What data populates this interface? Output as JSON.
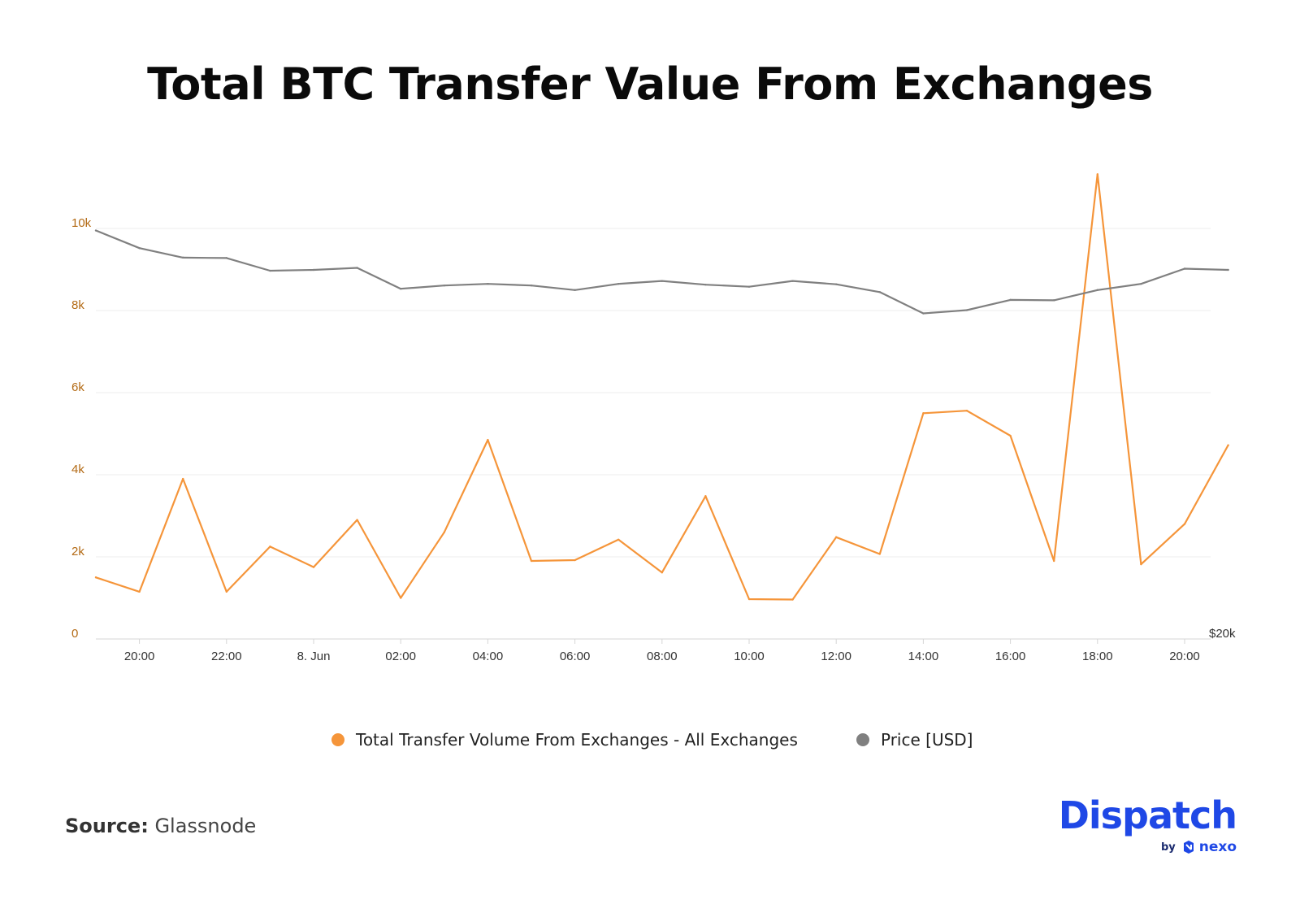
{
  "title": "Total BTC Transfer Value From Exchanges",
  "legend": {
    "items": [
      {
        "label": "Total Transfer Volume From Exchanges - All Exchanges",
        "color": "#f5953a"
      },
      {
        "label": "Price [USD]",
        "color": "#808080"
      }
    ]
  },
  "source": {
    "label": "Source:",
    "value": "Glassnode"
  },
  "logo": {
    "text": "Dispatch",
    "by": "by",
    "brand": "nexo",
    "icon": "nexo-logo-icon"
  },
  "colors": {
    "volume": "#f5953a",
    "price": "#808080",
    "left_axis_text": "#b36a14",
    "grid": "#ececec",
    "brand": "#1f48e6"
  },
  "chart_data": {
    "type": "line",
    "title": "Total BTC Transfer Value From Exchanges",
    "x": [
      "19:00",
      "20:00",
      "21:00",
      "22:00",
      "23:00",
      "8. Jun",
      "01:00",
      "02:00",
      "03:00",
      "04:00",
      "05:00",
      "06:00",
      "07:00",
      "08:00",
      "09:00",
      "10:00",
      "11:00",
      "12:00",
      "13:00",
      "14:00",
      "15:00",
      "16:00",
      "17:00",
      "18:00",
      "19:00",
      "20:00",
      "20:50"
    ],
    "x_tick_labels": [
      "20:00",
      "22:00",
      "8. Jun",
      "02:00",
      "04:00",
      "06:00",
      "08:00",
      "10:00",
      "12:00",
      "14:00",
      "16:00",
      "18:00",
      "20:00"
    ],
    "series": [
      {
        "name": "Total Transfer Volume From Exchanges - All Exchanges",
        "axis": "left",
        "color": "#f5953a",
        "values": [
          1500,
          1150,
          3900,
          1150,
          2250,
          1750,
          2900,
          1000,
          2600,
          4850,
          1900,
          1920,
          2420,
          1620,
          3480,
          970,
          960,
          2480,
          2070,
          5500,
          5560,
          4950,
          1900,
          11320,
          1820,
          2800,
          4720
        ]
      },
      {
        "name": "Price [USD]",
        "axis": "right",
        "color": "#808080",
        "values": [
          9950,
          9520,
          9290,
          9280,
          8970,
          8990,
          9040,
          8530,
          8610,
          8650,
          8610,
          8500,
          8650,
          8720,
          8630,
          8580,
          8720,
          8640,
          8450,
          7930,
          8010,
          8260,
          8250,
          8500,
          8650,
          9020,
          8990
        ]
      }
    ],
    "y_left": {
      "ticks": [
        "0",
        "2k",
        "4k",
        "6k",
        "8k",
        "10k"
      ],
      "ylim": [
        0,
        12000
      ]
    },
    "y_right": {
      "ticks": [
        "$20k"
      ]
    },
    "grid": true,
    "legend_position": "bottom"
  }
}
